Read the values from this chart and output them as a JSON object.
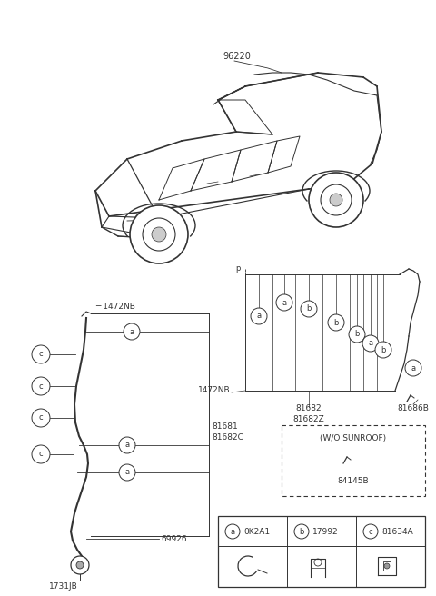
{
  "background_color": "#ffffff",
  "line_color": "#333333",
  "fig_width": 4.8,
  "fig_height": 6.56,
  "legend_items": [
    {
      "letter": "a",
      "code": "0K2A1"
    },
    {
      "letter": "b",
      "code": "17992"
    },
    {
      "letter": "c",
      "code": "81634A"
    }
  ]
}
